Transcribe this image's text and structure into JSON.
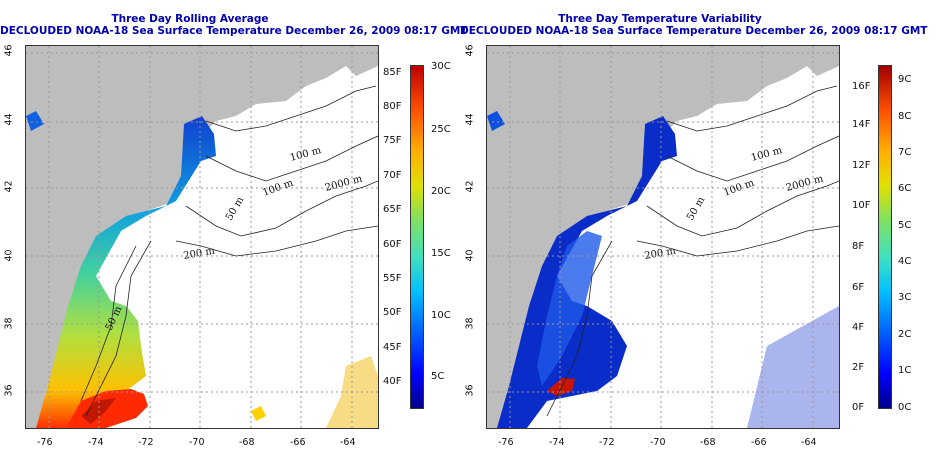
{
  "left_panel": {
    "title_line1": "Three Day Rolling Average",
    "title_line2": "DECLOUDED NOAA-18 Sea Surface Temperature December 26, 2009 08:17 GMT",
    "lon_ticks": [
      "-76",
      "-74",
      "-72",
      "-70",
      "-68",
      "-66",
      "-64"
    ],
    "lat_ticks": [
      "46",
      "44",
      "42",
      "40",
      "38",
      "36"
    ],
    "contours": [
      "100 m",
      "100 m",
      "2000 m",
      "50 m",
      "200 m",
      "50 m"
    ],
    "colorbar_f": [
      "85F",
      "80F",
      "75F",
      "70F",
      "65F",
      "60F",
      "55F",
      "50F",
      "45F",
      "40F"
    ],
    "colorbar_c": [
      "30C",
      "25C",
      "20C",
      "15C",
      "10C",
      "5C"
    ]
  },
  "right_panel": {
    "title_line1": "Three Day Temperature Variability",
    "title_line2": "DECLOUDED NOAA-18 Sea Surface Temperature December 26, 2009 08:17 GMT",
    "lon_ticks": [
      "-76",
      "-74",
      "-72",
      "-70",
      "-68",
      "-66",
      "-64"
    ],
    "lat_ticks": [
      "46",
      "44",
      "42",
      "40",
      "38",
      "36"
    ],
    "contours": [
      "100 m",
      "100 m",
      "2000 m",
      "50 m",
      "200 m"
    ],
    "colorbar_f": [
      "16F",
      "14F",
      "12F",
      "10F",
      "8F",
      "6F",
      "4F",
      "2F",
      "0F"
    ],
    "colorbar_c": [
      "9C",
      "8C",
      "7C",
      "6C",
      "5C",
      "4C",
      "3C",
      "2C",
      "1C",
      "0C"
    ]
  },
  "colors": {
    "land": "#bdbdbd",
    "ocean": "#ffffff",
    "title": "#0000b0",
    "grid": "#aaaaaa"
  }
}
